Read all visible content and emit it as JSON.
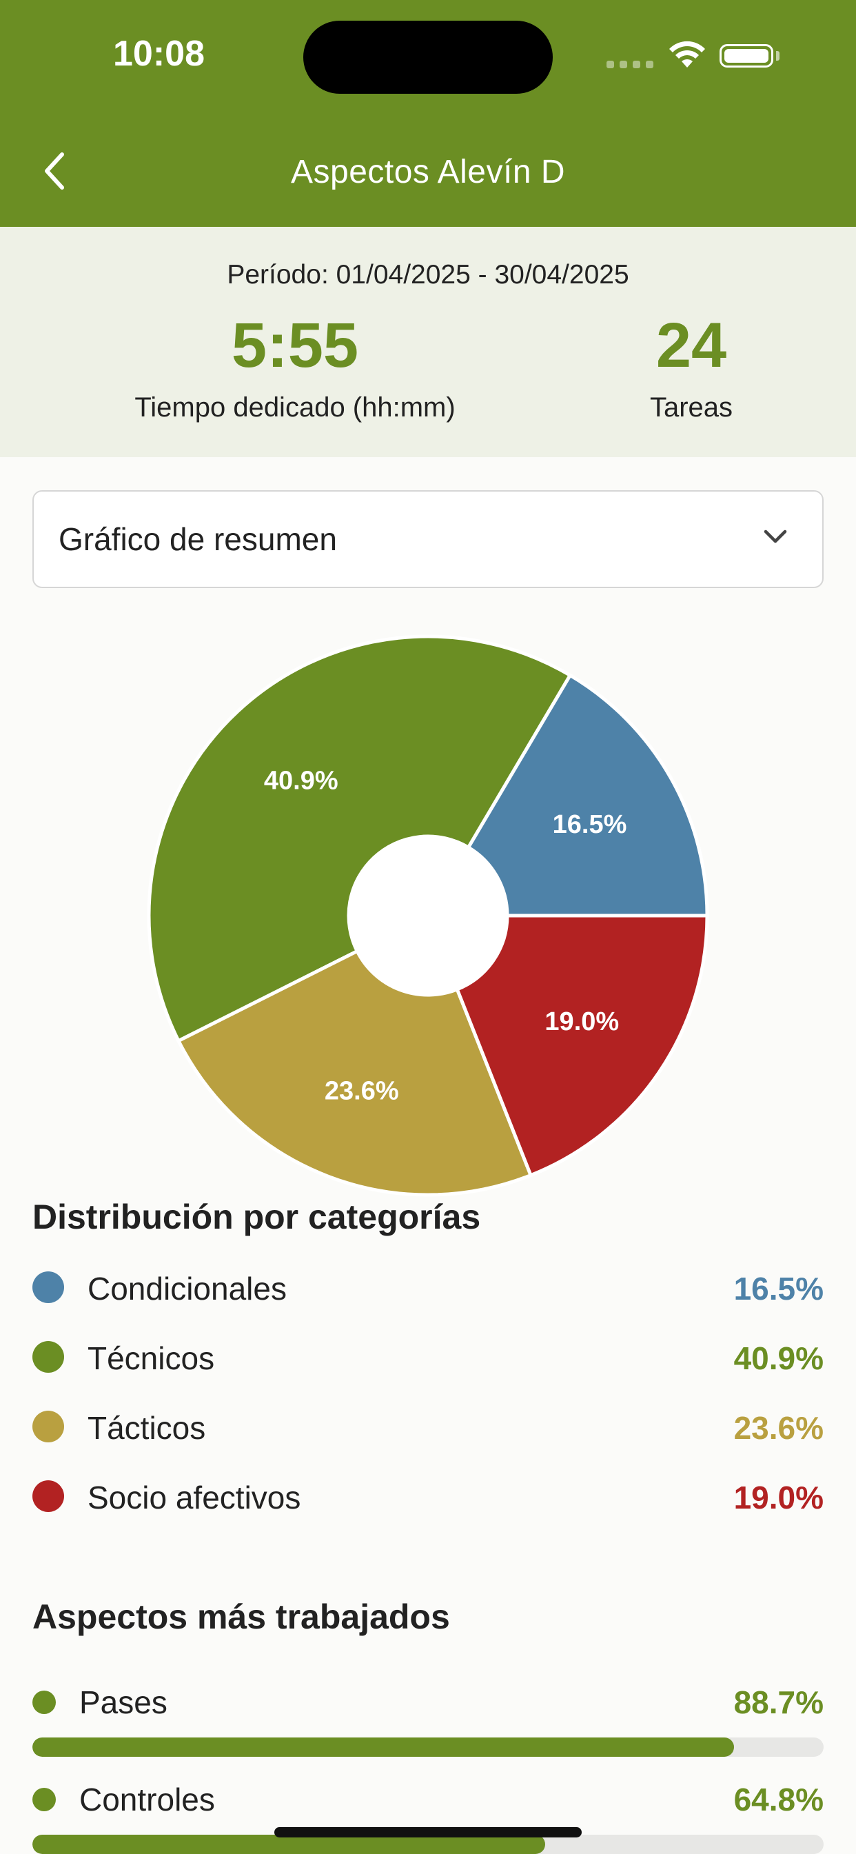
{
  "status_bar": {
    "time": "10:08"
  },
  "nav": {
    "title": "Aspectos Alevín D"
  },
  "summary": {
    "period": "Período: 01/04/2025 - 30/04/2025",
    "time_value": "5:55",
    "time_label": "Tiempo dedicado (hh:mm)",
    "tasks_value": "24",
    "tasks_label": "Tareas"
  },
  "dropdown": {
    "selected": "Gráfico de resumen"
  },
  "chart_data": {
    "type": "pie",
    "donut": true,
    "categories": [
      "Condicionales",
      "Técnicos",
      "Tácticos",
      "Socio afectivos"
    ],
    "values": [
      16.5,
      40.9,
      23.6,
      19.0
    ],
    "labels": [
      "16.5%",
      "40.9%",
      "23.6%",
      "19.0%"
    ],
    "colors": [
      "#4e82a8",
      "#6b8e23",
      "#b9a040",
      "#b22222"
    ]
  },
  "distribution": {
    "title": "Distribución por categorías",
    "items": [
      {
        "label": "Condicionales",
        "value": "16.5%",
        "color": "#4e82a8"
      },
      {
        "label": "Técnicos",
        "value": "40.9%",
        "color": "#6b8e23"
      },
      {
        "label": "Tácticos",
        "value": "23.6%",
        "color": "#b9a040"
      },
      {
        "label": "Socio afectivos",
        "value": "19.0%",
        "color": "#b22222"
      }
    ]
  },
  "aspects": {
    "title": "Aspectos más trabajados",
    "items": [
      {
        "label": "Pases",
        "value": "88.7%",
        "fraction": 0.887
      },
      {
        "label": "Controles",
        "value": "64.8%",
        "fraction": 0.648
      }
    ]
  }
}
